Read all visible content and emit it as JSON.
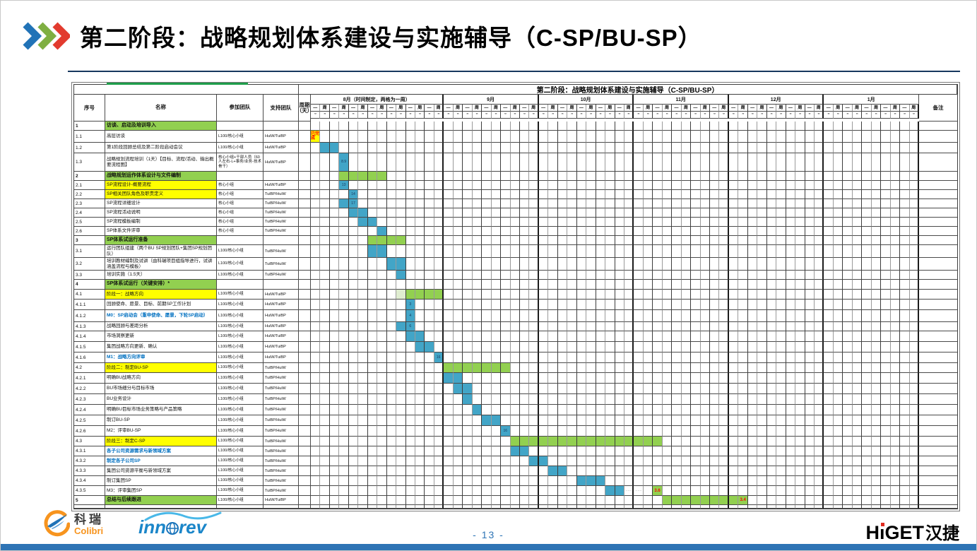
{
  "slide": {
    "title": "第二阶段：战略规划体系建设与实施辅导（C-SP/BU-SP）",
    "page_number": "- 13 -"
  },
  "footer": {
    "colibri_cn": "科瑞",
    "colibri_en": "Colibri",
    "innorev_pre": "inn",
    "innorev_post": "rev",
    "higet_h": "H",
    "higet_i": "ı",
    "higet_rest": "GET",
    "higet_cn": "汉捷"
  },
  "table": {
    "banner": "第二阶段：战略规划体系建设与实施辅导（C-SP/BU-SP）",
    "headers": {
      "no": "序号",
      "name": "名称",
      "team": "参加团队",
      "support": "支持团队",
      "duration": "周期（天）",
      "remark": "备注"
    },
    "months": [
      {
        "label": "8月（时间制定，两格为一周）",
        "weeks": 7
      },
      {
        "label": "9月",
        "weeks": 5
      },
      {
        "label": "10月",
        "weeks": 5
      },
      {
        "label": "11月",
        "weeks": 5
      },
      {
        "label": "12月",
        "weeks": 5
      },
      {
        "label": "1月",
        "weeks": 5
      }
    ],
    "week_cycle": [
      "—",
      "周"
    ],
    "date_placeholder": "**",
    "colors": {
      "bar_blue": "#42a5c7",
      "bar_green": "#92d050",
      "bar_pale": "#dfedd0",
      "highlight_yellow": "#ffff00",
      "section_green": "#92d050",
      "label_blue": "#0070c0",
      "red_text": "#ff0000"
    },
    "rows": [
      {
        "no": "1",
        "name": "访谈、启动及培训导入",
        "team": "",
        "support": "",
        "style": "section",
        "h": 13,
        "bars": []
      },
      {
        "no": "1.1",
        "name": "高层访谈",
        "team": "L100/核心小组",
        "support": "HuiW/TuiBP",
        "h": 17,
        "bars": [
          {
            "s": 1,
            "w": 1,
            "c": "yellow",
            "t": "已完成",
            "tc": "red"
          }
        ]
      },
      {
        "no": "1.2",
        "name": "第1阶段回顾总结及第二阶段启动会议",
        "team": "L100/核心小组",
        "support": "HuiW/TuiBP",
        "h": 15,
        "bars": [
          {
            "s": 2,
            "w": 2,
            "c": "blue"
          }
        ]
      },
      {
        "no": "1.3",
        "name": "战略规划流程培训（1天）【目标、流程/活动、输出概要流程图】",
        "team": "核心小组+干部人员（60人左右-L+事务/业务-技术骨干）",
        "support": "HuiW/TuiBP",
        "h": 26,
        "bars": [
          {
            "s": 4,
            "w": 1,
            "c": "blue",
            "t": "8.9"
          }
        ]
      },
      {
        "no": "2",
        "name": "战略规划运作体系设计与文件编制",
        "team": "",
        "support": "",
        "style": "section",
        "h": 13,
        "bars": [
          {
            "s": 4,
            "w": 5,
            "c": "green"
          }
        ]
      },
      {
        "no": "2.1",
        "name": "SP流程设计-概要流程",
        "team": "核心小组",
        "support": "HuiW/TuiBP",
        "name_bg": "yellow",
        "h": 13,
        "bars": [
          {
            "s": 4,
            "w": 1,
            "c": "blue",
            "t": "13"
          }
        ]
      },
      {
        "no": "2.2",
        "name": "SP相关团队角色及职责定义",
        "team": "核心小组",
        "support": "TuiBP/HuiW",
        "name_bg": "yellow",
        "h": 13,
        "bars": [
          {
            "s": 5,
            "w": 1,
            "c": "blue",
            "t": "14"
          }
        ]
      },
      {
        "no": "2.3",
        "name": "SP流程详细设计",
        "team": "核心小组",
        "support": "TuiBP/HuiW",
        "h": 13,
        "bars": [
          {
            "s": 4,
            "w": 2,
            "c": "blue",
            "t": "17",
            "tpos": 1
          }
        ]
      },
      {
        "no": "2.4",
        "name": "SP流程活动说明",
        "team": "核心小组",
        "support": "TuiBP/HuiW",
        "h": 13,
        "bars": [
          {
            "s": 5,
            "w": 2,
            "c": "blue"
          }
        ]
      },
      {
        "no": "2.5",
        "name": "SP流程模板编制",
        "team": "核心小组",
        "support": "TuiBP/HuiW",
        "h": 13,
        "bars": [
          {
            "s": 6,
            "w": 2,
            "c": "blue"
          }
        ]
      },
      {
        "no": "2.6",
        "name": "SP体系文件评审",
        "team": "核心小组",
        "support": "TuiBP/HuiW",
        "h": 13,
        "bars": [
          {
            "s": 8,
            "w": 1,
            "c": "blue"
          }
        ]
      },
      {
        "no": "3",
        "name": "SP体系试运行准备",
        "team": "",
        "support": "",
        "style": "section",
        "h": 13,
        "bars": [
          {
            "s": 7,
            "w": 4,
            "c": "green"
          }
        ]
      },
      {
        "no": "3.1",
        "name": "运行团队组建（两个BU SP规划团队+集团SP规划团队）",
        "team": "L100/核心小组",
        "support": "TuiBP/HuiW",
        "h": 18,
        "bars": [
          {
            "s": 7,
            "w": 2,
            "c": "blue"
          }
        ]
      },
      {
        "no": "3.2",
        "name": "培训教材编制及试讲（由科瑞项目组指导进行，试讲涵盖流程与模板）",
        "team": "L100/核心小组",
        "support": "TuiBP/HuiW",
        "h": 18,
        "bars": [
          {
            "s": 9,
            "w": 2,
            "c": "blue"
          }
        ]
      },
      {
        "no": "3.3",
        "name": "培训实施（1.5天）",
        "team": "L100/核心小组",
        "support": "TuiBP/HuiW",
        "h": 13,
        "bars": [
          {
            "s": 10,
            "w": 1,
            "c": "blue"
          }
        ]
      },
      {
        "no": "4",
        "name": "SP体系试运行（关键安排）*",
        "team": "",
        "support": "",
        "style": "section",
        "h": 14,
        "bars": []
      },
      {
        "no": "4.1",
        "name": "阶段一：战略方向",
        "team": "L100/核心小组",
        "support": "HuiW/TuiBP",
        "name_bg": "yellow",
        "h": 14,
        "bars": [
          {
            "s": 10,
            "w": 1,
            "c": "pale"
          },
          {
            "s": 11,
            "w": 4,
            "c": "green"
          }
        ]
      },
      {
        "no": "4.1.1",
        "name": "回顾使命、愿景、目标、前期SP工作计划",
        "team": "L100/核心小组",
        "support": "HuiW/TuiBP",
        "h": 15,
        "bars": [
          {
            "s": 11,
            "w": 1,
            "c": "blue",
            "t": "3"
          }
        ]
      },
      {
        "no": "4.1.2",
        "name": "M0：SP启动会（重申使命、愿景，下轮SP启动）",
        "team": "L100/核心小组",
        "support": "HuiW/TuiBP",
        "name_color": "blue",
        "h": 17,
        "bars": [
          {
            "s": 11,
            "w": 1,
            "c": "blue",
            "t": "4"
          }
        ]
      },
      {
        "no": "4.1.3",
        "name": "战略回顾与差距分析",
        "team": "L100/核心小组",
        "support": "HuiW/TuiBP",
        "h": 13,
        "bars": [
          {
            "s": 10,
            "w": 2,
            "c": "blue",
            "t": "6",
            "tpos": 1
          }
        ]
      },
      {
        "no": "4.1.4",
        "name": "市场洞察更新",
        "team": "L100/核心小组",
        "support": "HuiW/TuiBP",
        "h": 15,
        "bars": [
          {
            "s": 11,
            "w": 2,
            "c": "blue"
          }
        ]
      },
      {
        "no": "4.1.5",
        "name": "集团战略方向更新、确认",
        "team": "L100/核心小组",
        "support": "HuiW/TuiBP",
        "h": 15,
        "bars": [
          {
            "s": 12,
            "w": 2,
            "c": "blue"
          }
        ]
      },
      {
        "no": "4.1.6",
        "name": "M1：战略方向评审",
        "team": "L100/核心小组",
        "support": "HuiW/TuiBP",
        "name_color": "blue",
        "h": 15,
        "bars": [
          {
            "s": 14,
            "w": 1,
            "c": "blue",
            "t": "16"
          }
        ]
      },
      {
        "no": "4.2",
        "name": "阶段二：制定BU-SP",
        "team": "L100/核心小组",
        "support": "TuiBP/HuiW",
        "name_bg": "yellow",
        "h": 14,
        "bars": [
          {
            "s": 15,
            "w": 7,
            "c": "green"
          }
        ]
      },
      {
        "no": "4.2.1",
        "name": "明确BU战略方向",
        "team": "L100/核心小组",
        "support": "TuiBP/HuiW",
        "h": 15,
        "bars": [
          {
            "s": 15,
            "w": 2,
            "c": "blue"
          }
        ]
      },
      {
        "no": "4.2.2",
        "name": "BU市场细分与目标市场",
        "team": "L100/核心小组",
        "support": "TuiBP/HuiW",
        "h": 15,
        "bars": [
          {
            "s": 16,
            "w": 2,
            "c": "blue"
          }
        ]
      },
      {
        "no": "4.2.3",
        "name": "BU业务设计",
        "team": "L100/核心小组",
        "support": "TuiBP/HuiW",
        "h": 15,
        "bars": [
          {
            "s": 17,
            "w": 1,
            "c": "blue"
          }
        ]
      },
      {
        "no": "4.2.4",
        "name": "明确BU目标市场业务策略与产品策略",
        "team": "L100/核心小组",
        "support": "TuiBP/HuiW",
        "h": 15,
        "bars": [
          {
            "s": 18,
            "w": 1,
            "c": "blue"
          }
        ]
      },
      {
        "no": "4.2.5",
        "name": "制订BU-SP",
        "team": "L100/核心小组",
        "support": "TuiBP/HuiW",
        "h": 15,
        "bars": [
          {
            "s": 19,
            "w": 2,
            "c": "blue"
          }
        ]
      },
      {
        "no": "4.2.6",
        "name": "M2：评审BU-SP",
        "team": "L100/核心小组",
        "support": "TuiBP/HuiW",
        "h": 15,
        "bars": [
          {
            "s": 21,
            "w": 1,
            "c": "blue",
            "t": "16"
          }
        ]
      },
      {
        "no": "4.3",
        "name": "阶段三：制定C-SP",
        "team": "L100/核心小组",
        "support": "TuiBP/HuiW",
        "name_bg": "yellow",
        "h": 14,
        "bars": [
          {
            "s": 22,
            "w": 16,
            "c": "green"
          }
        ]
      },
      {
        "no": "4.3.1",
        "name": "各子公司资源需求与新领域方案",
        "team": "L100/核心小组",
        "support": "TuiBP/HuiW",
        "name_color": "blue",
        "h": 14,
        "bars": [
          {
            "s": 22,
            "w": 2,
            "c": "blue"
          }
        ]
      },
      {
        "no": "4.3.2",
        "name": "制定各子公司SP",
        "team": "L100/核心小组",
        "support": "TuiBP/HuiW",
        "name_color": "blue",
        "h": 14,
        "bars": [
          {
            "s": 24,
            "w": 2,
            "c": "blue"
          }
        ]
      },
      {
        "no": "4.3.3",
        "name": "集团公司资源平衡与新领域方案",
        "team": "L100/核心小组",
        "support": "TuiBP/HuiW",
        "h": 14,
        "bars": [
          {
            "s": 26,
            "w": 2,
            "c": "blue"
          }
        ]
      },
      {
        "no": "4.3.4",
        "name": "制订集团SP",
        "team": "L100/核心小组",
        "support": "TuiBP/HuiW",
        "h": 14,
        "bars": [
          {
            "s": 29,
            "w": 3,
            "c": "blue"
          }
        ]
      },
      {
        "no": "4.3.5",
        "name": "M3：评审集团SP",
        "team": "L100/核心小组",
        "support": "TuiBP/HuiW",
        "h": 14,
        "bars": [
          {
            "s": 32,
            "w": 2,
            "c": "blue"
          },
          {
            "s": 34,
            "w": 2,
            "c": "dash",
            "t": "……"
          },
          {
            "s": 37,
            "w": 1,
            "c": "green",
            "t": "3.6",
            "tc": "red"
          }
        ]
      },
      {
        "no": "5",
        "name": "总结与后续跟进",
        "team": "L100/核心小组",
        "support": "HuiW/TuiBP",
        "style": "section",
        "h": 13,
        "bars": [
          {
            "s": 38,
            "w": 9,
            "c": "green",
            "t": "3.4",
            "tc": "red",
            "tpos": 8
          }
        ]
      }
    ]
  }
}
